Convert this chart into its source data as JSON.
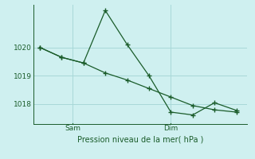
{
  "bg_color": "#cff0f0",
  "grid_color": "#a8d8d8",
  "line_color": "#1a5c2a",
  "ylim": [
    1017.3,
    1021.5
  ],
  "yticks": [
    1018,
    1019,
    1020
  ],
  "series1_x": [
    0,
    1,
    2,
    3,
    4,
    5,
    6,
    7,
    8,
    9
  ],
  "series1_y": [
    1020.0,
    1019.65,
    1019.45,
    1021.3,
    1020.1,
    1019.0,
    1017.72,
    1017.62,
    1018.05,
    1017.78
  ],
  "series2_x": [
    0,
    1,
    2,
    3,
    4,
    5,
    6,
    7,
    8,
    9
  ],
  "series2_y": [
    1020.0,
    1019.65,
    1019.45,
    1019.1,
    1018.85,
    1018.55,
    1018.25,
    1017.95,
    1017.8,
    1017.72
  ],
  "x_sam": 1.5,
  "x_dim": 6.0,
  "tick_labels_sam": "Sam",
  "tick_labels_dim": "Dim",
  "xlabel": "Pression niveau de la mer( hPa )",
  "xlim": [
    -0.3,
    9.5
  ]
}
